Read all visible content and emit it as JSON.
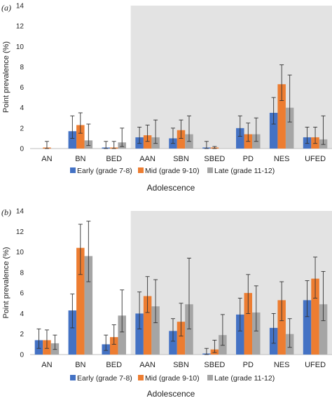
{
  "colors": {
    "early": "#4472C4",
    "mid": "#ED7D31",
    "late": "#A5A5A5",
    "shade": "#E3E3E3"
  },
  "chart_data": [
    {
      "type": "bar",
      "panel_label": "(a)",
      "categories": [
        "AN",
        "BN",
        "BED",
        "AAN",
        "SBN",
        "SBED",
        "PD",
        "NES",
        "UFED"
      ],
      "shaded_from_category": "AAN",
      "ylabel": "Point prevalence (%)",
      "xlabel": "Adolescence",
      "ylim": [
        0,
        14
      ],
      "yticks": [
        0,
        2,
        4,
        6,
        8,
        10,
        12,
        14
      ],
      "grid": false,
      "legend_position": "bottom",
      "series": [
        {
          "name": "Early (grade 7-8)",
          "values": [
            0,
            1.7,
            0.1,
            1.1,
            1.0,
            0.1,
            2.0,
            3.5,
            1.1
          ],
          "err_low": [
            0,
            0.7,
            0.1,
            0.6,
            0.5,
            0.1,
            0.8,
            1.1,
            0.6
          ],
          "err_high": [
            0,
            1.5,
            0.6,
            1.0,
            1.0,
            0.6,
            1.2,
            1.5,
            1.0
          ]
        },
        {
          "name": "Mid (grade 9-10)",
          "values": [
            0.1,
            2.3,
            0.1,
            1.3,
            1.8,
            0.1,
            1.4,
            6.3,
            1.1
          ],
          "err_low": [
            0.1,
            0.8,
            0.1,
            0.6,
            0.8,
            0.1,
            0.7,
            1.6,
            0.6
          ],
          "err_high": [
            0.6,
            1.2,
            0.6,
            1.0,
            1.0,
            0.1,
            1.1,
            1.9,
            1.0
          ]
        },
        {
          "name": "Late (grade 11-12)",
          "values": [
            0,
            0.8,
            0.6,
            1.1,
            1.4,
            0,
            1.4,
            4.0,
            0.9
          ],
          "err_low": [
            0,
            0.5,
            0.4,
            0.6,
            0.7,
            0,
            0.7,
            1.4,
            0.5
          ],
          "err_high": [
            0,
            1.6,
            1.4,
            1.7,
            1.8,
            0,
            1.6,
            3.2,
            2.3
          ]
        }
      ]
    },
    {
      "type": "bar",
      "panel_label": "(b)",
      "categories": [
        "AN",
        "BN",
        "BED",
        "AAN",
        "SBN",
        "SBED",
        "PD",
        "NES",
        "UFED"
      ],
      "shaded_from_category": "AAN",
      "ylabel": "Point prevalence (%)",
      "xlabel": "Adolescence",
      "ylim": [
        0,
        14
      ],
      "yticks": [
        0,
        2,
        4,
        6,
        8,
        10,
        12,
        14
      ],
      "grid": false,
      "legend_position": "bottom",
      "series": [
        {
          "name": "Early (grade 7-8)",
          "values": [
            1.4,
            4.3,
            1.0,
            4.0,
            2.3,
            0.1,
            3.9,
            2.6,
            5.3
          ],
          "err_low": [
            0.8,
            1.7,
            0.6,
            1.5,
            1.0,
            0.1,
            1.6,
            1.5,
            1.6
          ],
          "err_high": [
            1.1,
            1.6,
            0.9,
            2.1,
            1.2,
            0.5,
            1.6,
            1.4,
            1.9
          ]
        },
        {
          "name": "Mid (grade 9-10)",
          "values": [
            1.4,
            10.4,
            1.7,
            5.7,
            3.2,
            0.5,
            6.0,
            5.3,
            7.4
          ],
          "err_low": [
            0.8,
            2.6,
            0.7,
            1.6,
            1.4,
            0.3,
            2.0,
            2.0,
            1.9
          ],
          "err_high": [
            1.0,
            2.3,
            1.2,
            1.9,
            1.8,
            0.9,
            1.8,
            1.8,
            2.1
          ]
        },
        {
          "name": "Late (grade 11-12)",
          "values": [
            1.1,
            9.6,
            3.8,
            4.7,
            4.9,
            1.9,
            4.1,
            2.0,
            4.9
          ],
          "err_low": [
            0.6,
            2.5,
            1.6,
            1.6,
            2.4,
            1.0,
            1.8,
            1.3,
            1.6
          ],
          "err_high": [
            0.8,
            3.4,
            2.5,
            2.6,
            4.5,
            2.0,
            2.6,
            1.5,
            3.2
          ]
        }
      ]
    }
  ]
}
